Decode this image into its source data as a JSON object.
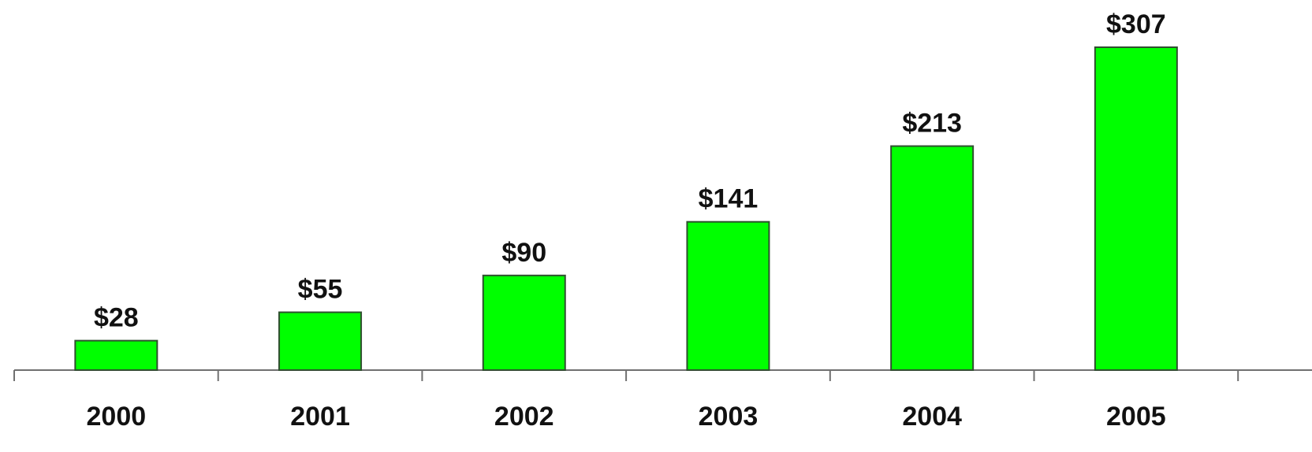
{
  "chart_data": {
    "type": "bar",
    "title": "",
    "xlabel": "",
    "ylabel": "",
    "categories": [
      "2000",
      "2001",
      "2002",
      "2003",
      "2004",
      "2005"
    ],
    "values": [
      28,
      55,
      90,
      141,
      213,
      307
    ],
    "data_labels": [
      "$28",
      "$55",
      "$90",
      "$141",
      "$213",
      "$307"
    ],
    "ylim": [
      0,
      307
    ],
    "grid": false,
    "legend": "none",
    "bar_color": "#00ff00",
    "bar_edge_color": "#2f4f2f",
    "axis_color": "#707070",
    "text_color": "#111111"
  }
}
